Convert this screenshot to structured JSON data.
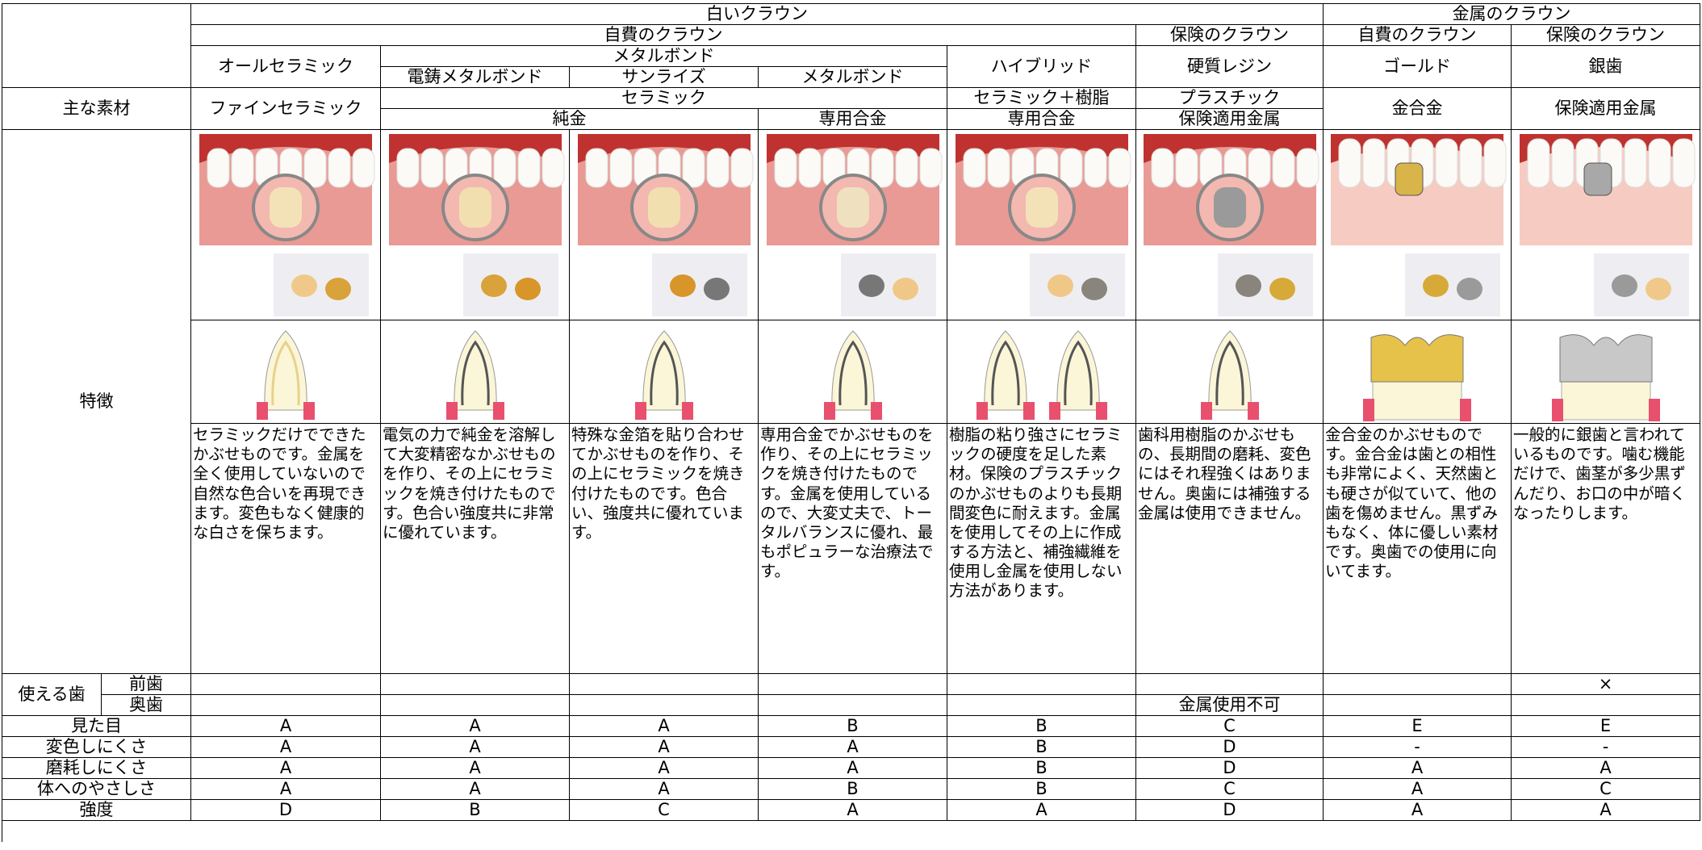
{
  "header": {
    "white_crown": "白いクラウン",
    "metal_crown": "金属のクラウン",
    "self_pay_white": "自費のクラウン",
    "insurance_white": "保険のクラウン",
    "self_pay_metal": "自費のクラウン",
    "insurance_metal": "保険のクラウン",
    "metal_bond_group": "メタルボンド",
    "main_material_label": "主な素材",
    "ceramic_group": "セラミック",
    "pure_gold": "純金",
    "special_alloy": "専用合金",
    "features_label": "特徴",
    "usable_teeth_label": "使える歯",
    "front_teeth": "前歯",
    "back_teeth": "奥歯"
  },
  "crowns": [
    {
      "name": "オールセラミック",
      "material": "ファインセラミック",
      "description": "セラミックだけでできたかぶせものです。金属を全く使用していないので自然な色合いを再現できます。変色もなく健康的な白さを保ちます。"
    },
    {
      "name": "電鋳メタルボンド",
      "description": "電気の力で純金を溶解して大変精密なかぶせものを作り、その上にセラミックを焼き付けたものです。色合い強度共に非常に優れています。"
    },
    {
      "name": "サンライズ",
      "description": "特殊な金箔を貼り合わせてかぶせものを作り、その上にセラミックを焼き付けたものです。色合い、強度共に優れています。"
    },
    {
      "name": "メタルボンド",
      "description": "専用合金でかぶせものを作り、その上にセラミックを焼き付けたものです。金属を使用しているので、大変丈夫で、トータルバランスに優れ、最もポピュラーな治療法です。"
    },
    {
      "name": "ハイブリッド",
      "material": "セラミック＋樹脂",
      "alloy": "専用合金",
      "description": "樹脂の粘り強さにセラミックの硬度を足した素材。保険のプラスチックのかぶせものよりも長期間変色に耐えます。金属を使用してその上に作成する方法と、補強繊維を使用し金属を使用しない方法があります。"
    },
    {
      "name": "硬質レジン",
      "material": "プラスチック",
      "alloy": "保険適用金属",
      "back_teeth": "金属使用不可",
      "description": "歯科用樹脂のかぶせもの、長期間の磨耗、変色にはそれ程強くはありません。奥歯には補強する金属は使用できません。"
    },
    {
      "name": "ゴールド",
      "material": "金合金",
      "description": "金合金のかぶせものです。金合金は歯との相性も非常によく、天然歯とも硬さが似ていて、他の歯を傷めません。黒ずみもなく、体に優しい素材です。奥歯での使用に向いてます。"
    },
    {
      "name": "銀歯",
      "material": "保険適用金属",
      "front_teeth": "×",
      "description": "一般的に銀歯と言われているものです。噛む機能だけで、歯茎が多少黒ずんだり、お口の中が暗くなったりします。"
    }
  ],
  "ratings": {
    "labels": [
      "見た目",
      "変色しにくさ",
      "磨耗しにくさ",
      "体へのやさしさ",
      "強度"
    ],
    "rows": [
      [
        "A",
        "A",
        "A",
        "B",
        "B",
        "C",
        "E",
        "E"
      ],
      [
        "A",
        "A",
        "A",
        "A",
        "B",
        "D",
        "-",
        "-"
      ],
      [
        "A",
        "A",
        "A",
        "A",
        "B",
        "D",
        "A",
        "A"
      ],
      [
        "A",
        "A",
        "A",
        "B",
        "B",
        "C",
        "A",
        "C"
      ],
      [
        "D",
        "B",
        "C",
        "A",
        "A",
        "D",
        "A",
        "A"
      ]
    ]
  }
}
